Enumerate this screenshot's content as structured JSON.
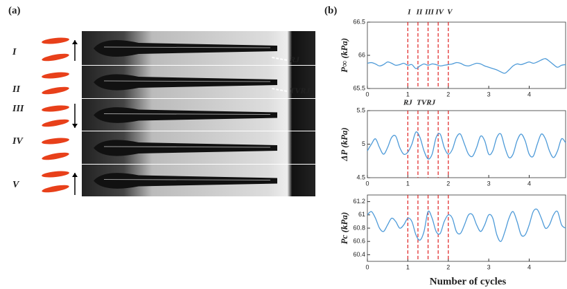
{
  "panel_a": {
    "label": "(a)",
    "rows": [
      "I",
      "II",
      "III",
      "IV",
      "V"
    ],
    "annotations": [
      "RJ",
      "TVRJ"
    ]
  },
  "panel_b": {
    "label": "(b)",
    "x_label": "Number of cycles",
    "phase_labels": [
      "I",
      "II",
      "III",
      "IV",
      "V"
    ],
    "phase_x": [
      1,
      1.25,
      1.5,
      1.75,
      2
    ],
    "event_labels": [
      "RJ",
      "TVRJ"
    ],
    "event_x": [
      1,
      1.45
    ],
    "phase_color": "#e02020"
  },
  "chart_data": [
    {
      "type": "line",
      "ylabel": "P∞ (kPa)",
      "xlim": [
        0,
        4.9
      ],
      "xticks": [
        0,
        1,
        2,
        3,
        4
      ],
      "ylim": [
        65.5,
        66.5
      ],
      "yticks": [
        65.5,
        66,
        66.5
      ],
      "x": [
        0,
        0.1,
        0.2,
        0.3,
        0.4,
        0.5,
        0.6,
        0.7,
        0.8,
        0.9,
        1,
        1.1,
        1.2,
        1.3,
        1.4,
        1.5,
        1.6,
        1.7,
        1.8,
        1.9,
        2,
        2.1,
        2.2,
        2.3,
        2.4,
        2.5,
        2.6,
        2.7,
        2.8,
        2.9,
        3,
        3.1,
        3.2,
        3.3,
        3.4,
        3.5,
        3.6,
        3.7,
        3.8,
        3.9,
        4,
        4.1,
        4.2,
        4.3,
        4.4,
        4.5,
        4.6,
        4.7,
        4.8,
        4.9
      ],
      "series": [
        {
          "color": "#4d9ad8",
          "values": [
            65.88,
            65.89,
            65.87,
            65.84,
            65.86,
            65.9,
            65.88,
            65.85,
            65.86,
            65.88,
            65.85,
            65.86,
            65.8,
            65.84,
            65.87,
            65.85,
            65.87,
            65.86,
            65.84,
            65.85,
            65.86,
            65.87,
            65.89,
            65.88,
            65.85,
            65.84,
            65.86,
            65.88,
            65.87,
            65.84,
            65.82,
            65.8,
            65.78,
            65.75,
            65.73,
            65.78,
            65.84,
            65.87,
            65.86,
            65.88,
            65.9,
            65.88,
            65.9,
            65.93,
            65.95,
            65.91,
            65.86,
            65.82,
            65.85,
            65.86
          ]
        }
      ]
    },
    {
      "type": "line",
      "ylabel": "ΔP (kPa)",
      "xlim": [
        0,
        4.9
      ],
      "xticks": [
        0,
        1,
        2,
        3,
        4
      ],
      "ylim": [
        4.5,
        5.5
      ],
      "yticks": [
        4.5,
        5,
        5.5
      ],
      "x": [
        0,
        0.1,
        0.2,
        0.3,
        0.4,
        0.5,
        0.6,
        0.7,
        0.8,
        0.9,
        1,
        1.1,
        1.2,
        1.3,
        1.4,
        1.5,
        1.6,
        1.7,
        1.8,
        1.9,
        2,
        2.1,
        2.2,
        2.3,
        2.4,
        2.5,
        2.6,
        2.7,
        2.8,
        2.9,
        3,
        3.1,
        3.2,
        3.3,
        3.4,
        3.5,
        3.6,
        3.7,
        3.8,
        3.9,
        4,
        4.1,
        4.2,
        4.3,
        4.4,
        4.5,
        4.6,
        4.7,
        4.8,
        4.9
      ],
      "series": [
        {
          "color": "#4d9ad8",
          "values": [
            4.9,
            5.0,
            5.08,
            4.95,
            4.85,
            4.95,
            5.1,
            5.12,
            4.95,
            4.85,
            4.88,
            5.0,
            5.18,
            5.1,
            4.9,
            4.78,
            4.85,
            5.1,
            5.15,
            4.95,
            4.85,
            4.92,
            5.1,
            5.15,
            5.0,
            4.85,
            4.82,
            4.95,
            5.12,
            5.05,
            4.85,
            4.9,
            5.1,
            5.15,
            4.95,
            4.8,
            4.85,
            5.05,
            5.15,
            5.05,
            4.85,
            4.82,
            5.0,
            5.15,
            5.08,
            4.9,
            4.8,
            4.9,
            5.08,
            5.02
          ]
        }
      ]
    },
    {
      "type": "line",
      "ylabel": "Pc (kPa)",
      "xlim": [
        0,
        4.9
      ],
      "xticks": [
        0,
        1,
        2,
        3,
        4
      ],
      "ylim": [
        60.3,
        61.3
      ],
      "yticks": [
        60.4,
        60.6,
        60.8,
        61,
        61.2
      ],
      "x": [
        0,
        0.1,
        0.2,
        0.3,
        0.4,
        0.5,
        0.6,
        0.7,
        0.8,
        0.9,
        1,
        1.1,
        1.2,
        1.3,
        1.4,
        1.5,
        1.6,
        1.7,
        1.8,
        1.9,
        2,
        2.1,
        2.2,
        2.3,
        2.4,
        2.5,
        2.6,
        2.7,
        2.8,
        2.9,
        3,
        3.1,
        3.2,
        3.3,
        3.4,
        3.5,
        3.6,
        3.7,
        3.8,
        3.9,
        4,
        4.1,
        4.2,
        4.3,
        4.4,
        4.5,
        4.6,
        4.7,
        4.8,
        4.9
      ],
      "series": [
        {
          "color": "#4d9ad8",
          "values": [
            61.0,
            61.05,
            60.95,
            60.8,
            60.75,
            60.85,
            60.95,
            60.9,
            60.8,
            60.85,
            60.95,
            60.9,
            60.7,
            60.62,
            60.75,
            61.05,
            60.95,
            60.75,
            60.72,
            60.9,
            61.0,
            60.95,
            60.75,
            60.72,
            60.85,
            61.0,
            61.0,
            60.85,
            60.75,
            60.85,
            61.0,
            60.95,
            60.7,
            60.6,
            60.75,
            60.95,
            61.05,
            60.9,
            60.7,
            60.7,
            60.85,
            61.05,
            61.08,
            60.95,
            60.8,
            60.85,
            61.0,
            61.05,
            60.85,
            60.8
          ]
        }
      ]
    }
  ]
}
